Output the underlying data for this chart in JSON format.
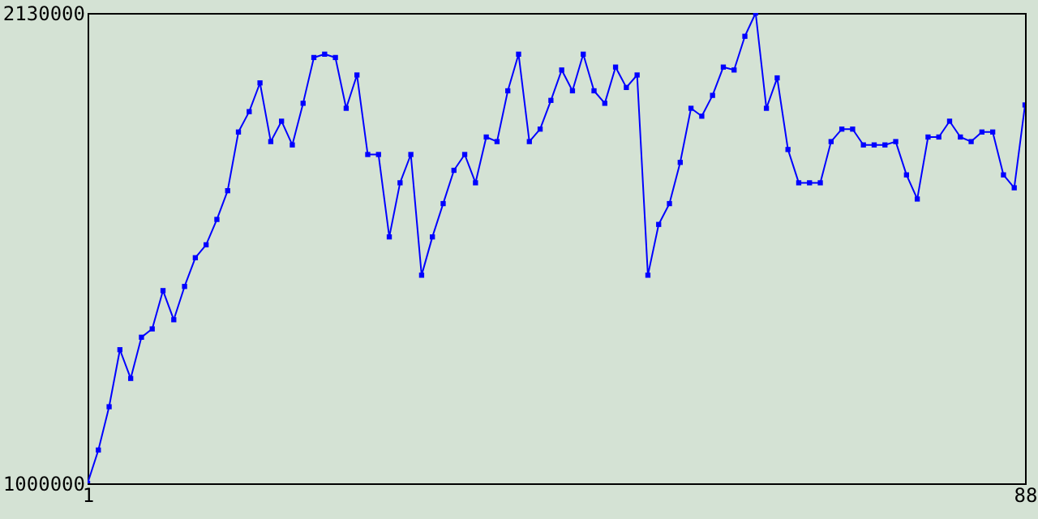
{
  "chart_data": {
    "type": "line",
    "x": [
      1,
      2,
      3,
      4,
      5,
      6,
      7,
      8,
      9,
      10,
      11,
      12,
      13,
      14,
      15,
      16,
      17,
      18,
      19,
      20,
      21,
      22,
      23,
      24,
      25,
      26,
      27,
      28,
      29,
      30,
      31,
      32,
      33,
      34,
      35,
      36,
      37,
      38,
      39,
      40,
      41,
      42,
      43,
      44,
      45,
      46,
      47,
      48,
      49,
      50,
      51,
      52,
      53,
      54,
      55,
      56,
      57,
      58,
      59,
      60,
      61,
      62,
      63,
      64,
      65,
      66,
      67,
      68,
      69,
      70,
      71,
      72,
      73,
      74,
      75,
      76,
      77,
      78,
      79,
      80,
      81,
      82,
      83,
      84,
      85,
      86,
      87,
      88
    ],
    "series": [
      {
        "color": "#0000ff",
        "values": [
          1000000,
          1080000,
          1184000,
          1321000,
          1252000,
          1351000,
          1371000,
          1463000,
          1393000,
          1473000,
          1542000,
          1573000,
          1634000,
          1703000,
          1844000,
          1893000,
          1962000,
          1821000,
          1870000,
          1813000,
          1913000,
          2023000,
          2031000,
          2023000,
          1901000,
          1981000,
          1790000,
          1790000,
          1592000,
          1722000,
          1790000,
          1500000,
          1592000,
          1672000,
          1752000,
          1790000,
          1722000,
          1832000,
          1821000,
          1943000,
          2031000,
          1821000,
          1851000,
          1920000,
          1993000,
          1943000,
          2031000,
          1943000,
          1913000,
          2000000,
          1951000,
          1981000,
          1500000,
          1622000,
          1672000,
          1771000,
          1901000,
          1882000,
          1932000,
          2000000,
          1993000,
          2074000,
          2130000,
          1901000,
          1974000,
          1802000,
          1722000,
          1722000,
          1722000,
          1821000,
          1851000,
          1851000,
          1813000,
          1813000,
          1813000,
          1821000,
          1741000,
          1683000,
          1832000,
          1832000,
          1870000,
          1832000,
          1821000,
          1844000,
          1844000,
          1741000,
          1710000,
          1909000
        ]
      }
    ],
    "xlim": [
      1,
      88
    ],
    "xticks": [
      1,
      88
    ],
    "ylim": [
      1000000,
      2130000
    ],
    "yticks": [
      1000000,
      2130000
    ],
    "grid": false,
    "marker": "square",
    "line_style": "solid"
  }
}
